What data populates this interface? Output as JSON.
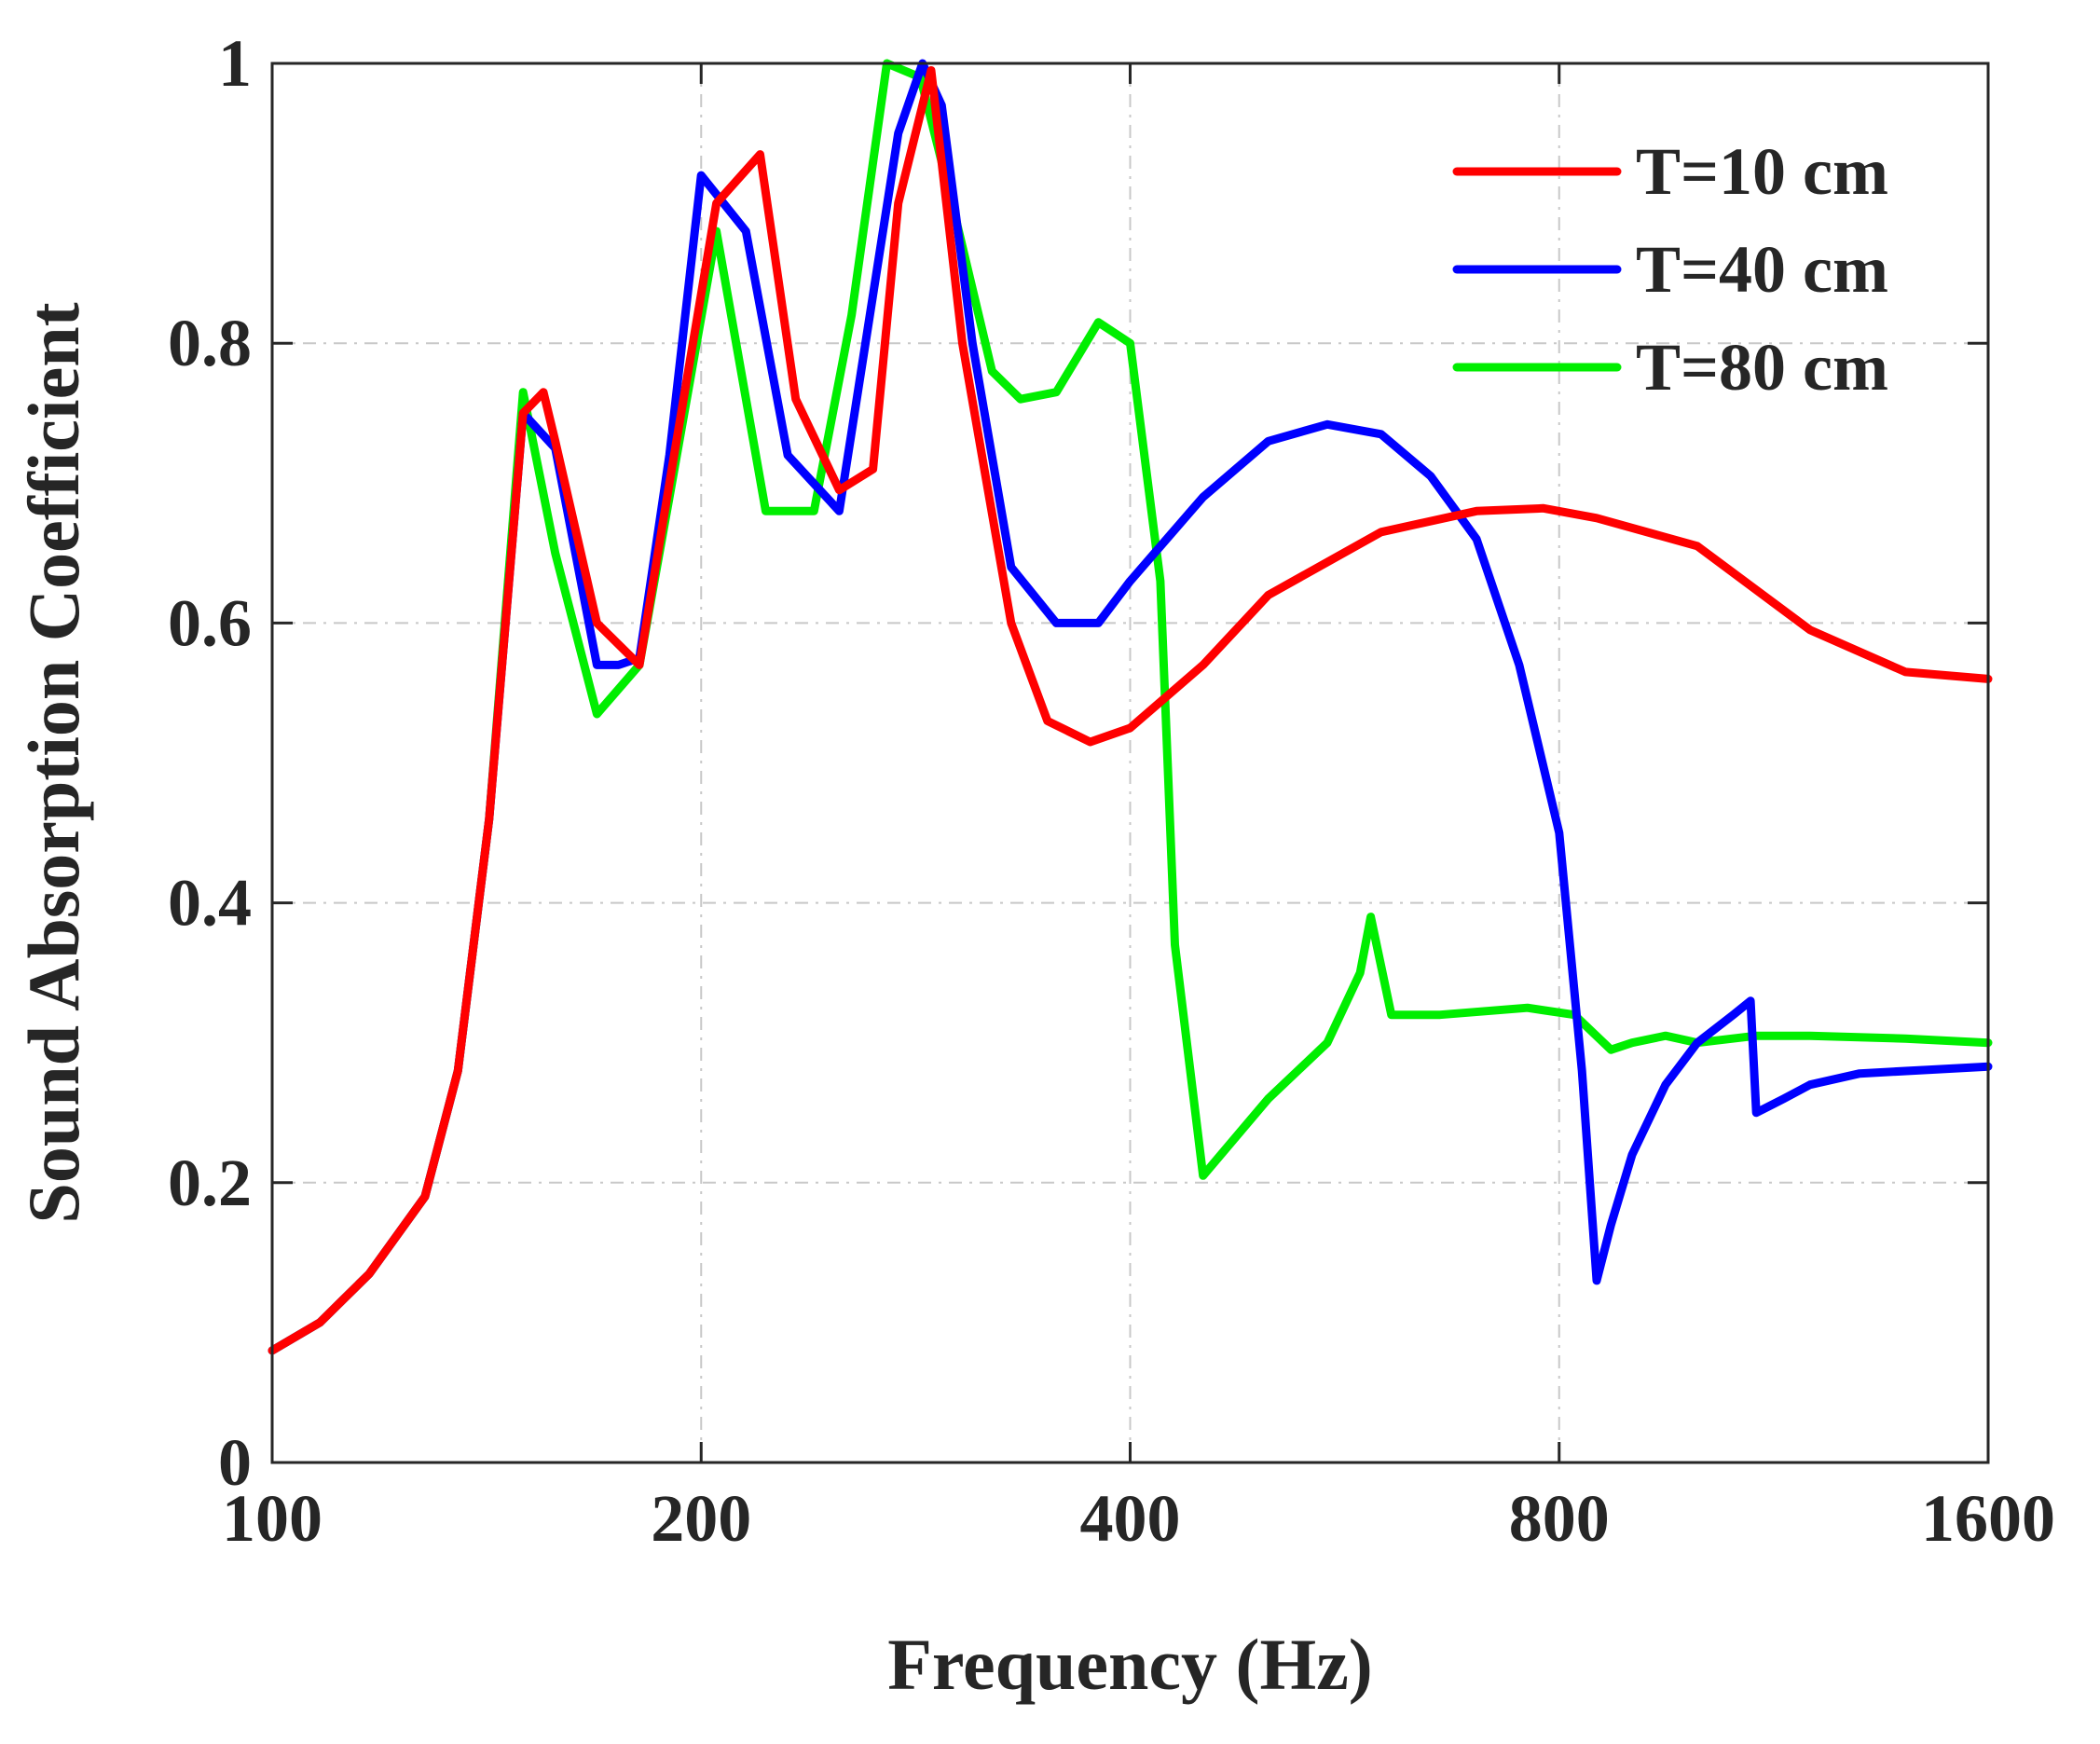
{
  "chart_data": {
    "type": "line",
    "xscale": "log2",
    "xlabel": "Frequency (Hz)",
    "ylabel": "Sound Absorption Coefficient",
    "xlim": [
      100,
      1600
    ],
    "ylim": [
      0,
      1
    ],
    "xticks": [
      100,
      200,
      400,
      800,
      1600
    ],
    "xtick_labels": [
      "100",
      "200",
      "400",
      "800",
      "1600"
    ],
    "yticks": [
      0,
      0.2,
      0.4,
      0.6,
      0.8,
      1
    ],
    "ytick_labels": [
      "0",
      "0.2",
      "0.4",
      "0.6",
      "0.8",
      "1"
    ],
    "grid": true,
    "legend_position": "top-right",
    "series": [
      {
        "name": "T=10 cm",
        "color": "#ff0000",
        "x": [
          100,
          108,
          117,
          128,
          135,
          142,
          150,
          155,
          158,
          169,
          181,
          190,
          205,
          220,
          233,
          250,
          264,
          275,
          290,
          305,
          330,
          350,
          375,
          400,
          450,
          500,
          600,
          700,
          780,
          850,
          1000,
          1200,
          1400,
          1600
        ],
        "y": [
          0.08,
          0.1,
          0.135,
          0.19,
          0.28,
          0.46,
          0.75,
          0.765,
          0.73,
          0.6,
          0.57,
          0.7,
          0.9,
          0.935,
          0.76,
          0.695,
          0.71,
          0.9,
          0.995,
          0.8,
          0.6,
          0.53,
          0.515,
          0.525,
          0.57,
          0.62,
          0.665,
          0.68,
          0.682,
          0.675,
          0.655,
          0.595,
          0.565,
          0.56
        ]
      },
      {
        "name": "T=40 cm",
        "color": "#0000ff",
        "x": [
          100,
          108,
          117,
          128,
          135,
          142,
          150,
          158,
          169,
          175,
          181,
          190,
          200,
          215,
          230,
          250,
          275,
          286,
          295,
          310,
          330,
          355,
          380,
          400,
          450,
          500,
          550,
          600,
          650,
          700,
          750,
          800,
          830,
          850,
          870,
          900,
          950,
          1000,
          1060,
          1090,
          1100,
          1150,
          1200,
          1300,
          1600
        ],
        "y": [
          0.08,
          0.1,
          0.135,
          0.19,
          0.28,
          0.46,
          0.75,
          0.725,
          0.57,
          0.57,
          0.575,
          0.72,
          0.92,
          0.88,
          0.72,
          0.68,
          0.95,
          1.0,
          0.97,
          0.8,
          0.64,
          0.6,
          0.6,
          0.63,
          0.69,
          0.73,
          0.742,
          0.735,
          0.705,
          0.66,
          0.57,
          0.45,
          0.28,
          0.13,
          0.17,
          0.22,
          0.27,
          0.3,
          0.32,
          0.33,
          0.25,
          0.26,
          0.27,
          0.278,
          0.283
        ]
      },
      {
        "name": "T=80 cm",
        "color": "#00ee00",
        "x": [
          100,
          108,
          117,
          128,
          135,
          142,
          150,
          158,
          169,
          181,
          190,
          205,
          222,
          240,
          255,
          270,
          285,
          300,
          320,
          335,
          355,
          380,
          400,
          420,
          430,
          450,
          500,
          550,
          580,
          590,
          610,
          660,
          760,
          820,
          870,
          900,
          950,
          1000,
          1100,
          1200,
          1400,
          1600
        ],
        "y": [
          0.08,
          0.1,
          0.135,
          0.19,
          0.28,
          0.46,
          0.765,
          0.65,
          0.535,
          0.57,
          0.69,
          0.88,
          0.68,
          0.68,
          0.82,
          1.0,
          0.99,
          0.9,
          0.78,
          0.76,
          0.765,
          0.815,
          0.8,
          0.63,
          0.37,
          0.205,
          0.26,
          0.3,
          0.35,
          0.39,
          0.32,
          0.32,
          0.325,
          0.32,
          0.295,
          0.3,
          0.305,
          0.3,
          0.305,
          0.305,
          0.303,
          0.3
        ]
      }
    ]
  }
}
